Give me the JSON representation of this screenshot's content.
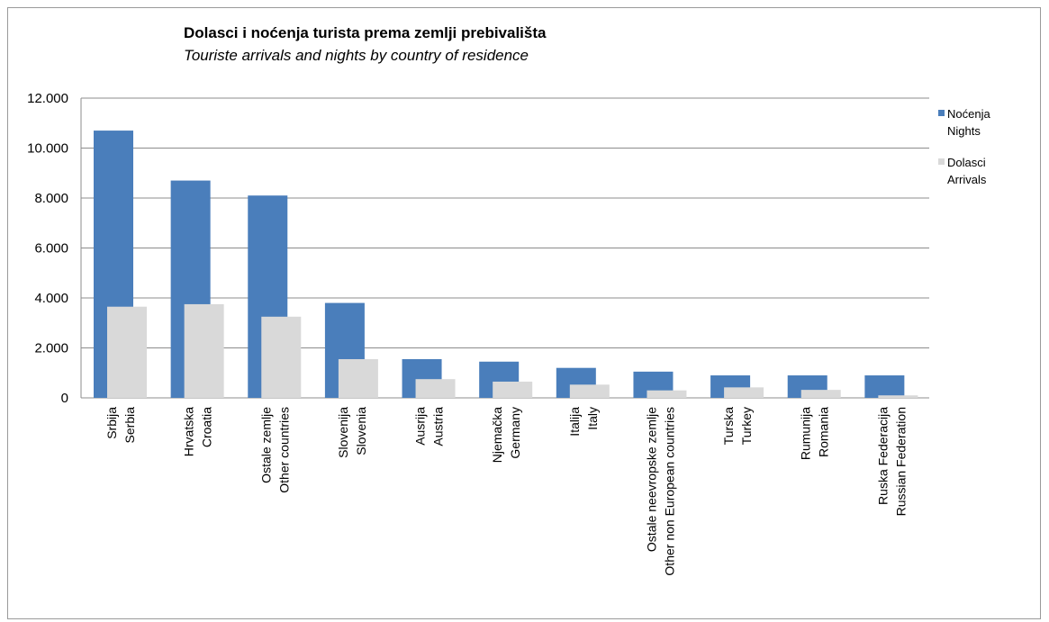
{
  "chart_data": {
    "type": "bar",
    "title": "Dolasci i noćenja turista prema zemlji prebivališta",
    "subtitle": "Touriste arrivals and nights by country of residence",
    "categories": [
      [
        "Srbija",
        "Serbia"
      ],
      [
        "Hrvatska",
        "Croatia"
      ],
      [
        "Ostale zemlje",
        "Other countries"
      ],
      [
        "Slovenija",
        "Slovenia"
      ],
      [
        "Ausrija",
        "Austria"
      ],
      [
        "Njemačka",
        "Germany"
      ],
      [
        "Italija",
        "Italy"
      ],
      [
        "Ostale neevropske zemlje",
        "Other non European countries"
      ],
      [
        "Turska",
        "Turkey"
      ],
      [
        "Rumunija",
        "Romania"
      ],
      [
        "Ruska Federacija",
        "Russian  Federation"
      ]
    ],
    "series": [
      {
        "name": [
          "Noćenja",
          "Nights"
        ],
        "color": "#4a7ebb",
        "values": [
          10700,
          8700,
          8100,
          3800,
          1550,
          1450,
          1200,
          1050,
          900,
          900,
          900
        ]
      },
      {
        "name": [
          "Dolasci",
          "Arrivals"
        ],
        "color": "#d9d9d9",
        "values": [
          3650,
          3750,
          3250,
          1550,
          750,
          650,
          530,
          300,
          420,
          320,
          100
        ]
      }
    ],
    "ylim": [
      0,
      12000
    ],
    "yticks": [
      0,
      2000,
      4000,
      6000,
      8000,
      10000,
      12000
    ],
    "ytick_labels": [
      "0",
      "2.000",
      "4.000",
      "6.000",
      "8.000",
      "10.000",
      "12.000"
    ],
    "grid": true,
    "legend": "right"
  }
}
